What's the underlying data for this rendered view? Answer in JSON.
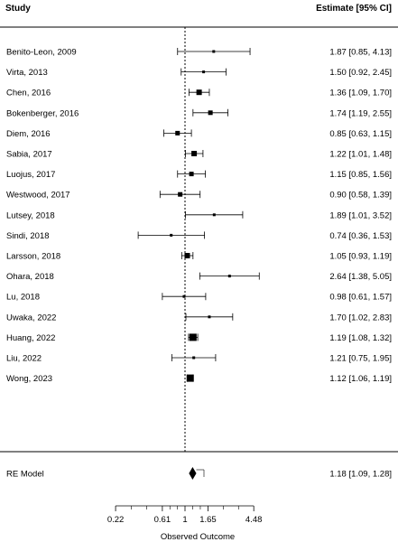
{
  "chart_data": {
    "type": "forest",
    "header": {
      "study": "Study",
      "estimate": "Estimate [95% CI]"
    },
    "xlabel": "Observed Outcome",
    "scale": "log",
    "ticks": [
      {
        "value": 0.22,
        "label": "0.22"
      },
      {
        "value": 0.61,
        "label": "0.61"
      },
      {
        "value": 1,
        "label": "1"
      },
      {
        "value": 1.65,
        "label": "1.65"
      },
      {
        "value": 4.48,
        "label": "4.48"
      }
    ],
    "reference_line": 1,
    "studies": [
      {
        "name": "Benito-Leon, 2009",
        "est": 1.87,
        "lo": 0.85,
        "hi": 4.13,
        "text": "1.87 [0.85, 4.13]",
        "box": "small"
      },
      {
        "name": "Virta, 2013",
        "est": 1.5,
        "lo": 0.92,
        "hi": 2.45,
        "text": "1.50 [0.92, 2.45]",
        "box": "small"
      },
      {
        "name": "Chen, 2016",
        "est": 1.36,
        "lo": 1.09,
        "hi": 1.7,
        "text": "1.36 [1.09, 1.70]",
        "box": "large"
      },
      {
        "name": "Bokenberger, 2016",
        "est": 1.74,
        "lo": 1.19,
        "hi": 2.55,
        "text": "1.74 [1.19, 2.55]",
        "box": "medium"
      },
      {
        "name": "Diem, 2016",
        "est": 0.85,
        "lo": 0.63,
        "hi": 1.15,
        "text": "0.85 [0.63, 1.15]",
        "box": "medium"
      },
      {
        "name": "Sabia, 2017",
        "est": 1.22,
        "lo": 1.01,
        "hi": 1.48,
        "text": "1.22 [1.01, 1.48]",
        "box": "large"
      },
      {
        "name": "Luojus, 2017",
        "est": 1.15,
        "lo": 0.85,
        "hi": 1.56,
        "text": "1.15 [0.85, 1.56]",
        "box": "medium"
      },
      {
        "name": "Westwood, 2017",
        "est": 0.9,
        "lo": 0.58,
        "hi": 1.39,
        "text": "0.90 [0.58, 1.39]",
        "box": "medium"
      },
      {
        "name": "Lutsey, 2018",
        "est": 1.89,
        "lo": 1.01,
        "hi": 3.52,
        "text": "1.89 [1.01, 3.52]",
        "box": "small"
      },
      {
        "name": "Sindi, 2018",
        "est": 0.74,
        "lo": 0.36,
        "hi": 1.53,
        "text": "0.74 [0.36, 1.53]",
        "box": "small"
      },
      {
        "name": "Larsson, 2018",
        "est": 1.05,
        "lo": 0.93,
        "hi": 1.19,
        "text": "1.05 [0.93, 1.19]",
        "box": "large"
      },
      {
        "name": "Ohara, 2018",
        "est": 2.64,
        "lo": 1.38,
        "hi": 5.05,
        "text": "2.64 [1.38, 5.05]",
        "box": "small"
      },
      {
        "name": "Lu, 2018",
        "est": 0.98,
        "lo": 0.61,
        "hi": 1.57,
        "text": "0.98 [0.61, 1.57]",
        "box": "small"
      },
      {
        "name": "Uwaka, 2022",
        "est": 1.7,
        "lo": 1.02,
        "hi": 2.83,
        "text": "1.70 [1.02, 2.83]",
        "box": "small"
      },
      {
        "name": "Huang, 2022",
        "est": 1.19,
        "lo": 1.08,
        "hi": 1.32,
        "text": "1.19 [1.08, 1.32]",
        "box": "xlarge"
      },
      {
        "name": "Liu, 2022",
        "est": 1.21,
        "lo": 0.75,
        "hi": 1.95,
        "text": "1.21 [0.75, 1.95]",
        "box": "small"
      },
      {
        "name": "Wong, 2023",
        "est": 1.12,
        "lo": 1.06,
        "hi": 1.19,
        "text": "1.12 [1.06, 1.19]",
        "box": "xlarge"
      }
    ],
    "summary": {
      "name": "RE Model",
      "est": 1.18,
      "lo": 1.09,
      "hi": 1.28,
      "text": "1.18 [1.09, 1.28]"
    }
  }
}
